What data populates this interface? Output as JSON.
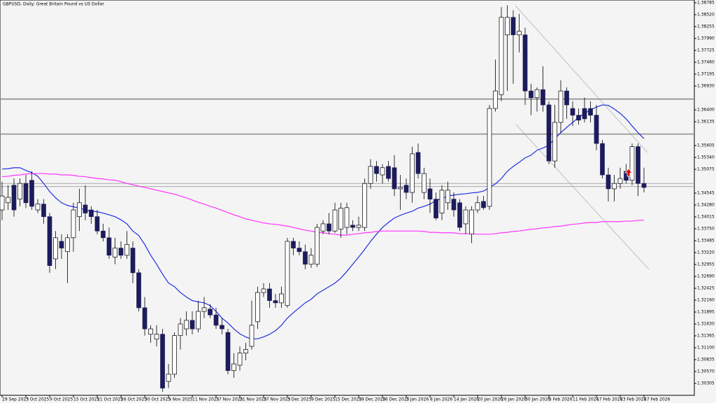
{
  "chart_data": {
    "type": "candlestick",
    "title": "GBPUSD, Daily:  Great Britain Pound vs US Dollar",
    "categories": [
      "29 Sep 2025",
      null,
      null,
      null,
      "3 Oct 2025",
      null,
      null,
      null,
      "9 Oct 2025",
      null,
      null,
      null,
      "15 Oct 2025",
      null,
      null,
      null,
      "21 Oct 2025",
      null,
      null,
      null,
      "26 Oct 2025",
      null,
      null,
      null,
      "30 Oct 2025",
      null,
      null,
      null,
      "5 Nov 2025",
      null,
      null,
      null,
      "11 Nov 2025",
      null,
      null,
      null,
      "17 Nov 2025",
      null,
      null,
      null,
      "21 Nov 2025",
      null,
      null,
      null,
      "27 Nov 2025",
      null,
      null,
      null,
      "3 Dec 2025",
      null,
      null,
      null,
      "9 Dec 2025",
      null,
      null,
      null,
      "15 Dec 2025",
      null,
      null,
      null,
      "19 Dec 2025",
      null,
      null,
      null,
      "26 Dec 2025",
      null,
      null,
      null,
      "2 Jan 2026",
      null,
      null,
      null,
      "8 Jan 2026",
      null,
      null,
      null,
      "14 Jan 2026",
      null,
      null,
      null,
      "20 Jan 2026",
      null,
      null,
      null,
      "26 Jan 2026",
      null,
      null,
      null,
      "30 Jan 2026",
      null,
      null,
      null,
      "5 Feb 2026",
      null,
      null,
      null,
      "11 Feb 2026",
      null,
      null,
      null,
      "17 Feb 2026",
      null,
      null,
      null,
      "23 Feb 2026",
      null,
      null,
      null,
      "27 Feb 2026"
    ],
    "open": [
      1.3417,
      1.3433,
      1.3472,
      1.3441,
      1.3476,
      1.3483,
      1.3417,
      1.343,
      1.3402,
      1.3308,
      1.3347,
      1.3324,
      1.3355,
      1.3402,
      1.3428,
      1.3417,
      1.3402,
      1.337,
      1.3355,
      1.3312,
      1.3332,
      1.3316,
      1.3332,
      1.3277,
      1.3199,
      1.314,
      1.3129,
      1.314,
      1.3035,
      1.3051,
      1.3137,
      1.3152,
      1.3171,
      1.3152,
      1.3191,
      1.3196,
      1.3183,
      1.316,
      1.3144,
      1.3059,
      1.3071,
      1.3098,
      1.3113,
      1.3168,
      1.3233,
      1.3241,
      1.3215,
      1.321,
      1.3204,
      1.3347,
      1.3332,
      1.3324,
      1.3296,
      1.3296,
      1.337,
      1.3386,
      1.337,
      1.3374,
      1.3378,
      1.3383,
      1.3378,
      1.3378,
      1.3476,
      1.3514,
      1.3495,
      1.3514,
      1.3511,
      1.3464,
      1.3472,
      1.3456,
      1.3545,
      1.3456,
      1.3464,
      1.3441,
      1.341,
      1.3433,
      1.3441,
      1.3433,
      1.3386,
      1.3363,
      1.3417,
      1.3436,
      1.3425,
      1.3643,
      1.3674,
      1.3807,
      1.3846,
      1.3807,
      1.3807,
      1.3682,
      1.3667,
      1.3685,
      1.3651,
      1.3526,
      1.3612,
      1.3682,
      1.3643,
      1.3628,
      1.3643,
      1.3643,
      1.3628,
      1.3565,
      1.3495,
      1.3464,
      1.3476,
      1.3503,
      1.3483,
      1.3558,
      1.3476
    ],
    "high": [
      1.348,
      1.3472,
      1.3487,
      1.3487,
      1.3495,
      1.3503,
      1.3441,
      1.3441,
      1.341,
      1.337,
      1.3363,
      1.3363,
      1.3433,
      1.3464,
      1.3472,
      1.3425,
      1.3417,
      1.3386,
      1.3378,
      1.3355,
      1.3347,
      1.337,
      1.3347,
      1.3285,
      1.3223,
      1.316,
      1.316,
      1.3152,
      1.3074,
      1.3144,
      1.3176,
      1.3191,
      1.3191,
      1.3215,
      1.3223,
      1.3207,
      1.3199,
      1.3176,
      1.3152,
      1.3098,
      1.3113,
      1.3121,
      1.3215,
      1.3246,
      1.3254,
      1.3254,
      1.323,
      1.3246,
      1.3355,
      1.3355,
      1.3347,
      1.334,
      1.3332,
      1.3386,
      1.3394,
      1.341,
      1.3433,
      1.3433,
      1.3433,
      1.3394,
      1.3402,
      1.3487,
      1.353,
      1.3526,
      1.3519,
      1.3526,
      1.3539,
      1.3495,
      1.3487,
      1.3558,
      1.3565,
      1.3511,
      1.3487,
      1.3456,
      1.3472,
      1.348,
      1.3456,
      1.3441,
      1.3425,
      1.3425,
      1.3448,
      1.3448,
      1.3651,
      1.3752,
      1.3869,
      1.3873,
      1.3862,
      1.3854,
      1.3823,
      1.3698,
      1.369,
      1.3737,
      1.3659,
      1.3651,
      1.3706,
      1.369,
      1.3659,
      1.3643,
      1.3667,
      1.3659,
      1.3651,
      1.3573,
      1.3511,
      1.3495,
      1.3511,
      1.3519,
      1.3565,
      1.3565,
      1.3511
    ],
    "low": [
      1.3394,
      1.3417,
      1.3402,
      1.3425,
      1.3421,
      1.3417,
      1.341,
      1.3386,
      1.3277,
      1.3285,
      1.3308,
      1.3254,
      1.3324,
      1.337,
      1.3394,
      1.3386,
      1.3363,
      1.3347,
      1.3308,
      1.3296,
      1.3308,
      1.3308,
      1.3254,
      1.3191,
      1.3137,
      1.3121,
      1.3113,
      1.3012,
      1.302,
      1.3043,
      1.3106,
      1.3137,
      1.314,
      1.3144,
      1.3176,
      1.3176,
      1.3152,
      1.314,
      1.3051,
      1.3043,
      1.3059,
      1.3082,
      1.3106,
      1.3152,
      1.3223,
      1.3199,
      1.3199,
      1.3199,
      1.3199,
      1.3316,
      1.3316,
      1.3285,
      1.3288,
      1.329,
      1.3363,
      1.3363,
      1.3366,
      1.3355,
      1.3363,
      1.337,
      1.337,
      1.337,
      1.3464,
      1.348,
      1.3476,
      1.348,
      1.3448,
      1.3417,
      1.3441,
      1.3433,
      1.3487,
      1.3441,
      1.341,
      1.3394,
      1.3394,
      1.3417,
      1.3402,
      1.337,
      1.3363,
      1.3343,
      1.341,
      1.3417,
      1.3417,
      1.3636,
      1.3659,
      1.3682,
      1.3698,
      1.3768,
      1.3651,
      1.3628,
      1.3636,
      1.3636,
      1.3519,
      1.3511,
      1.3589,
      1.362,
      1.3604,
      1.3607,
      1.3612,
      1.3612,
      1.355,
      1.3487,
      1.3436,
      1.3436,
      1.3464,
      1.3476,
      1.3472,
      1.3448,
      1.3456
    ],
    "close": [
      1.3448,
      1.3445,
      1.3417,
      1.3476,
      1.3433,
      1.3425,
      1.343,
      1.3402,
      1.3293,
      1.3355,
      1.3332,
      1.3355,
      1.3417,
      1.3433,
      1.341,
      1.3402,
      1.337,
      1.3355,
      1.3316,
      1.3332,
      1.3316,
      1.334,
      1.3277,
      1.3199,
      1.3152,
      1.3152,
      1.314,
      1.302,
      1.3051,
      1.3137,
      1.3163,
      1.3171,
      1.3152,
      1.3191,
      1.3199,
      1.3183,
      1.316,
      1.3152,
      1.3059,
      1.3074,
      1.3098,
      1.3106,
      1.316,
      1.3233,
      1.3241,
      1.3215,
      1.321,
      1.323,
      1.3347,
      1.3332,
      1.3324,
      1.3296,
      1.3316,
      1.3378,
      1.3386,
      1.337,
      1.3417,
      1.3421,
      1.3422,
      1.3378,
      1.3383,
      1.3476,
      1.3514,
      1.3498,
      1.3511,
      1.3487,
      1.3464,
      1.3467,
      1.3456,
      1.3542,
      1.3498,
      1.3498,
      1.3441,
      1.3399,
      1.3461,
      1.3461,
      1.3417,
      1.3378,
      1.3417,
      1.3417,
      1.3433,
      1.3422,
      1.3643,
      1.3682,
      1.3846,
      1.3846,
      1.3807,
      1.3815,
      1.3682,
      1.3667,
      1.3685,
      1.3651,
      1.3526,
      1.3612,
      1.3682,
      1.3651,
      1.3628,
      1.3617,
      1.362,
      1.3628,
      1.3565,
      1.3495,
      1.3464,
      1.3476,
      1.3487,
      1.3483,
      1.3558,
      1.3476,
      1.3467
    ],
    "up_color": "#ffffff",
    "down_color": "#1c1c5c",
    "outline_color": "#000000",
    "series": [
      {
        "color": "#1f2fe0",
        "values": [
          1.3508,
          1.3509,
          1.3511,
          1.3511,
          1.3505,
          1.35,
          1.3492,
          1.3476,
          1.3458,
          1.3444,
          1.3433,
          1.3427,
          1.3424,
          1.3421,
          1.3417,
          1.3414,
          1.3413,
          1.341,
          1.3406,
          1.3402,
          1.3395,
          1.3386,
          1.337,
          1.336,
          1.334,
          1.3316,
          1.3296,
          1.3274,
          1.3254,
          1.3246,
          1.3233,
          1.3223,
          1.3215,
          1.3212,
          1.321,
          1.3204,
          1.3191,
          1.3176,
          1.3165,
          1.3152,
          1.3141,
          1.3134,
          1.3129,
          1.313,
          1.3134,
          1.314,
          1.3148,
          1.316,
          1.3176,
          1.3188,
          1.3199,
          1.321,
          1.3218,
          1.323,
          1.3238,
          1.3246,
          1.3254,
          1.3265,
          1.328,
          1.3296,
          1.3312,
          1.3329,
          1.3347,
          1.3363,
          1.3378,
          1.3389,
          1.3399,
          1.3405,
          1.341,
          1.3414,
          1.3421,
          1.3425,
          1.343,
          1.3438,
          1.3442,
          1.3448,
          1.345,
          1.3452,
          1.3453,
          1.3455,
          1.3456,
          1.3459,
          1.3467,
          1.3475,
          1.3487,
          1.3503,
          1.3514,
          1.3523,
          1.3533,
          1.3539,
          1.355,
          1.3555,
          1.3561,
          1.3576,
          1.3589,
          1.3601,
          1.3612,
          1.3623,
          1.3632,
          1.364,
          1.3646,
          1.3651,
          1.365,
          1.3642,
          1.3632,
          1.362,
          1.3604,
          1.3589,
          1.3576
        ]
      },
      {
        "color": "#ff33ff",
        "values": [
          1.3491,
          1.3492,
          1.3494,
          1.3495,
          1.3497,
          1.3498,
          1.3498,
          1.3498,
          1.3497,
          1.3497,
          1.3495,
          1.3495,
          1.3494,
          1.3492,
          1.3491,
          1.3489,
          1.3487,
          1.3486,
          1.3484,
          1.3483,
          1.348,
          1.3476,
          1.3473,
          1.347,
          1.3467,
          1.3464,
          1.3461,
          1.3458,
          1.3455,
          1.3452,
          1.3448,
          1.3444,
          1.3439,
          1.3434,
          1.343,
          1.3425,
          1.3421,
          1.3416,
          1.3411,
          1.3406,
          1.3402,
          1.3397,
          1.3394,
          1.3391,
          1.3388,
          1.3386,
          1.3385,
          1.3383,
          1.3381,
          1.3378,
          1.3375,
          1.3372,
          1.337,
          1.3367,
          1.3366,
          1.3364,
          1.3363,
          1.3361,
          1.3361,
          1.3363,
          1.3364,
          1.3366,
          1.3367,
          1.3369,
          1.337,
          1.337,
          1.337,
          1.337,
          1.337,
          1.337,
          1.337,
          1.3369,
          1.3367,
          1.3367,
          1.3366,
          1.3366,
          1.3366,
          1.3364,
          1.3364,
          1.3364,
          1.3363,
          1.3363,
          1.3363,
          1.3364,
          1.3366,
          1.3367,
          1.3369,
          1.337,
          1.3372,
          1.3374,
          1.3375,
          1.3377,
          1.3378,
          1.338,
          1.3381,
          1.3383,
          1.3385,
          1.3386,
          1.3388,
          1.3389,
          1.3389,
          1.3391,
          1.3391,
          1.3391,
          1.3391,
          1.3392,
          1.3392,
          1.3394,
          1.3394
        ]
      }
    ],
    "levels": [
      1.3664,
      1.3586,
      1.3476,
      1.3469
    ],
    "level_color": "#8a8a8a",
    "ylim": [
      1.3004,
      1.38847
    ],
    "yticks": [
      1.38785,
      {
        "value": 1.3852,
        "label": "1.38520"
      },
      1.38255,
      {
        "value": 1.3799,
        "label": "1.37990"
      },
      1.37725,
      {
        "value": 1.3746,
        "label": "1.37460"
      },
      1.37195,
      {
        "value": 1.3693,
        "label": "1.36930"
      },
      {
        "value": 1.364,
        "label": "1.36400"
      },
      1.36135,
      1.35605,
      {
        "value": 1.3534,
        "label": "1.35340"
      },
      1.35075,
      1.34545,
      {
        "value": 1.3428,
        "label": "1.34280"
      },
      1.34015,
      {
        "value": 1.3375,
        "label": "1.33750"
      },
      1.33485,
      {
        "value": 1.3322,
        "label": "1.33220"
      },
      1.32955,
      {
        "value": 1.3269,
        "label": "1.32690"
      },
      1.32425,
      {
        "value": 1.3216,
        "label": "1.32160"
      },
      1.31895,
      {
        "value": 1.3163,
        "label": "1.31630"
      },
      1.31365,
      {
        "value": 1.311,
        "label": "1.31100"
      },
      1.30835,
      {
        "value": 1.3057,
        "label": "1.30570"
      },
      1.30305
    ]
  }
}
